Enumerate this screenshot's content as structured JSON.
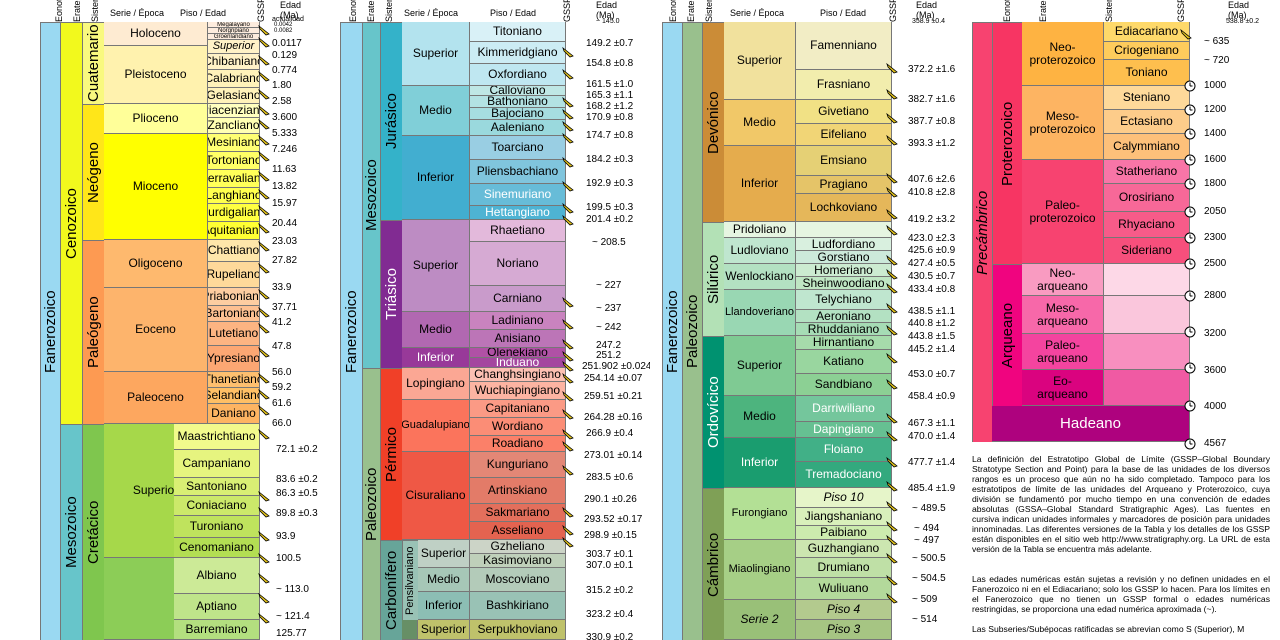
{
  "headers": {
    "eon": "Eonotema",
    "era": "Eratema",
    "system": "Sistema",
    "series": "Serie / Época",
    "stage": "Piso / Edad",
    "gssp": "GSSP",
    "age": "Edad",
    "ma": "(Ma)",
    "actual": "actualidad",
    "p2top": "~ 145.0",
    "p3top": "358.9 ±0.4",
    "p4top": "538.8 ±0.2"
  },
  "p1": {
    "eon": "Fanerozoico",
    "eraA": "Cenozoico",
    "eraB": "Mesozoico",
    "sys": [
      "Cuatemario",
      "Neógeno",
      "Paleógeno",
      "Cretácico"
    ],
    "ser": [
      "Holoceno",
      "Pleistoceno",
      "Plioceno",
      "Mioceno",
      "Oligoceno",
      "Eoceno",
      "Paleoceno",
      "Superior"
    ],
    "stages": [
      "Megalayano",
      "Norgripiano",
      "Groenlandiano",
      "Superior",
      "Chibaniano",
      "Calabriano",
      "Gelasiano",
      "Piacenziano",
      "Zancliano",
      "Mesiniano",
      "Tortoniano",
      "Serravaliano",
      "Langhiano",
      "Burdigaliano",
      "Aquitaniano",
      "Chattiano",
      "Rupeliano",
      "Priaboniano",
      "Bartoniano",
      "Lutetiano",
      "Ypresiano",
      "Thanetiano",
      "Selandiano",
      "Daniano",
      "Maastrichtiano",
      "Campaniano",
      "Santoniano",
      "Coniaciano",
      "Turoniano",
      "Cenomaniano",
      "Albiano",
      "Aptiano",
      "Barremiano"
    ],
    "ages": [
      "0.0042",
      "0.0082",
      "0.0117",
      "0.129",
      "0.774",
      "1.80",
      "2.58",
      "3.600",
      "5.333",
      "7.246",
      "11.63",
      "13.82",
      "15.97",
      "20.44",
      "23.03",
      "27.82",
      "33.9",
      "37.71",
      "41.2",
      "47.8",
      "56.0",
      "59.2",
      "61.6",
      "66.0",
      "72.1 ±0.2",
      "83.6 ±0.2",
      "86.3 ±0.5",
      "89.8 ±0.3",
      "93.9",
      "100.5",
      "~ 113.0",
      "~ 121.4",
      "125.77"
    ]
  },
  "p2": {
    "eon": "Fanerozoico",
    "eraA": "Mesozoico",
    "eraB": "Paleozoico",
    "sys": [
      "Jurásico",
      "Triásico",
      "Pérmico",
      "Carbonífero"
    ],
    "ser": [
      "Superior",
      "Medio",
      "Inferior",
      "Superior",
      "Medio",
      "Inferior",
      "Lopingiano",
      "Guadalupiano",
      "Cisuraliano",
      "Pensilvaniano",
      "Superior",
      "Medio",
      "Inferior",
      "Superior"
    ],
    "stages": [
      "Titoniano",
      "Kimmeridgiano",
      "Oxfordiano",
      "Calloviano",
      "Bathoniano",
      "Bajociano",
      "Aaleniano",
      "Toarciano",
      "Pliensbachiano",
      "Sinemuriano",
      "Hettangiano",
      "Rhaetiano",
      "Noriano",
      "Carniano",
      "Ladiniano",
      "Anisiano",
      "Olenekiano",
      "Induano",
      "Changhsingiano",
      "Wuchiapingiano",
      "Capitaniano",
      "Wordiano",
      "Roadiano",
      "Kunguriano",
      "Artinskiano",
      "Sakmariano",
      "Asseliano",
      "Gzheliano",
      "Kasimoviano",
      "Moscoviano",
      "Bashkiriano",
      "Serpukhoviano"
    ],
    "ages": [
      "149.2 ±0.7",
      "154.8 ±0.8",
      "161.5 ±1.0",
      "165.3 ±1.1",
      "168.2 ±1.2",
      "170.9 ±0.8",
      "174.7 ±0.8",
      "184.2 ±0.3",
      "192.9 ±0.3",
      "199.5 ±0.3",
      "201.4 ±0.2",
      "~ 208.5",
      "~ 227",
      "~ 237",
      "~ 242",
      "247.2",
      "251.2",
      "251.902 ±0.024",
      "254.14 ±0.07",
      "259.51 ±0.21",
      "264.28 ±0.16",
      "266.9 ±0.4",
      "273.01 ±0.14",
      "283.5 ±0.6",
      "290.1 ±0.26",
      "293.52 ±0.17",
      "298.9 ±0.15",
      "303.7 ±0.1",
      "307.0 ±0.1",
      "315.2 ±0.2",
      "323.2 ±0.4",
      "330.9 ±0.2"
    ]
  },
  "p3": {
    "eon": "Fanerozoico",
    "era": "Paleozoico",
    "sys": [
      "Devónico",
      "Silúrico",
      "Ordovícico",
      "Cámbrico"
    ],
    "ser": [
      "Superior",
      "Medio",
      "Inferior",
      "Pridoliano",
      "Ludloviano",
      "Wenlockiano",
      "Llandoveriano",
      "Superior",
      "Medio",
      "Inferior",
      "Furongiano",
      "Miaolingiano",
      "Serie 2"
    ],
    "stages": [
      "Famenniano",
      "Frasniano",
      "Givetiano",
      "Eifeliano",
      "Emsiano",
      "Pragiano",
      "Lochkoviano",
      "Ludfordiano",
      "Gorstiano",
      "Homeriano",
      "Sheinwoodiano",
      "Telychiano",
      "Aeroniano",
      "Rhuddaniano",
      "Hirnantiano",
      "Katiano",
      "Sandbiano",
      "Darriwiliano",
      "Dapingiano",
      "Floiano",
      "Tremadociano",
      "Piso 10",
      "Jiangshaniano",
      "Paibiano",
      "Guzhangiano",
      "Drumiano",
      "Wuliuano",
      "Piso 4",
      "Piso 3"
    ],
    "ages": [
      "372.2 ±1.6",
      "382.7 ±1.6",
      "387.7 ±0.8",
      "393.3 ±1.2",
      "407.6 ±2.6",
      "410.8 ±2.8",
      "419.2 ±3.2",
      "423.0 ±2.3",
      "425.6 ±0.9",
      "427.4 ±0.5",
      "430.5 ±0.7",
      "433.4 ±0.8",
      "438.5 ±1.1",
      "440.8 ±1.2",
      "443.8 ±1.5",
      "445.2 ±1.4",
      "453.0 ±0.7",
      "458.4 ±0.9",
      "467.3 ±1.1",
      "470.0 ±1.4",
      "477.7 ±1.4",
      "485.4 ±1.9",
      "~ 489.5",
      "~ 494",
      "~ 497",
      "~ 500.5",
      "~ 504.5",
      "~ 509",
      "~ 514"
    ]
  },
  "p4": {
    "eon": "Precámbrico",
    "eonA": "Proterozoico",
    "eonB": "Arqueano",
    "eras": [
      "Neo-\nproterozoico",
      "Meso-\nproterozoico",
      "Paleo-\nproterozoico",
      "Neo-\narqueano",
      "Meso-\narqueano",
      "Paleo-\narqueano",
      "Eo-\narqueano"
    ],
    "hadean": "Hadeano",
    "stages": [
      "Ediacariano",
      "Criogeniano",
      "Toniano",
      "Steniano",
      "Ectasiano",
      "Calymmiano",
      "Statheriano",
      "Orosiriano",
      "Rhyaciano",
      "Sideriano"
    ],
    "ages": [
      "~ 635",
      "~ 720",
      "1000",
      "1200",
      "1400",
      "1600",
      "1800",
      "2050",
      "2300",
      "2500",
      "2800",
      "3200",
      "3600",
      "4000",
      "4567"
    ]
  },
  "notes": [
    "La definición del Estratotipo Global de Límite (GSSP–Global Boundary Stratotype Section and Point) para la base de las unidades de los diversos rangos es un proceso que aún no ha sido completado. Tampoco para los estratotipos de límite de las unidades del Arqueano y Proterozoico, cuya división se fundamentó por mucho tiempo en una convención de edades absolutas (GSSA–Global Standard Stratigraphic Ages). Las fuentes en cursiva indican unidades informales y marcadores de posición para unidades innominadas. Las diferentes versiones de la Tabla y los detalles de los GSSP están disponibles en el sitio web http://www.stratigraphy.org. La URL de esta versión de la Tabla se encuentra más adelante.",
    "Las edades numéricas están sujetas a revisión y no definen unidades en el Fanerozoico ni en el Ediacariano; solo los GSSP lo hacen. Para los límites en el Fanerozoico que no tienen un GSSP formal o edades numéricas restringidas, se proporciona una edad numérica aproximada (~).",
    "Las Subseries/Subépocas ratificadas se abrevian como S (Superior), M"
  ],
  "colors": {
    "fanero": "#9ad9f2",
    "ceno": "#f2f91d",
    "meso": "#67c5ca",
    "paleo": "#99c08d",
    "precam": "#f74370",
    "protero": "#f73563",
    "arqueo": "#f0047f",
    "hadeano": "#ae027e"
  },
  "icons": {
    "gssp": "golden-spike-icon",
    "gssa": "clock-icon"
  }
}
